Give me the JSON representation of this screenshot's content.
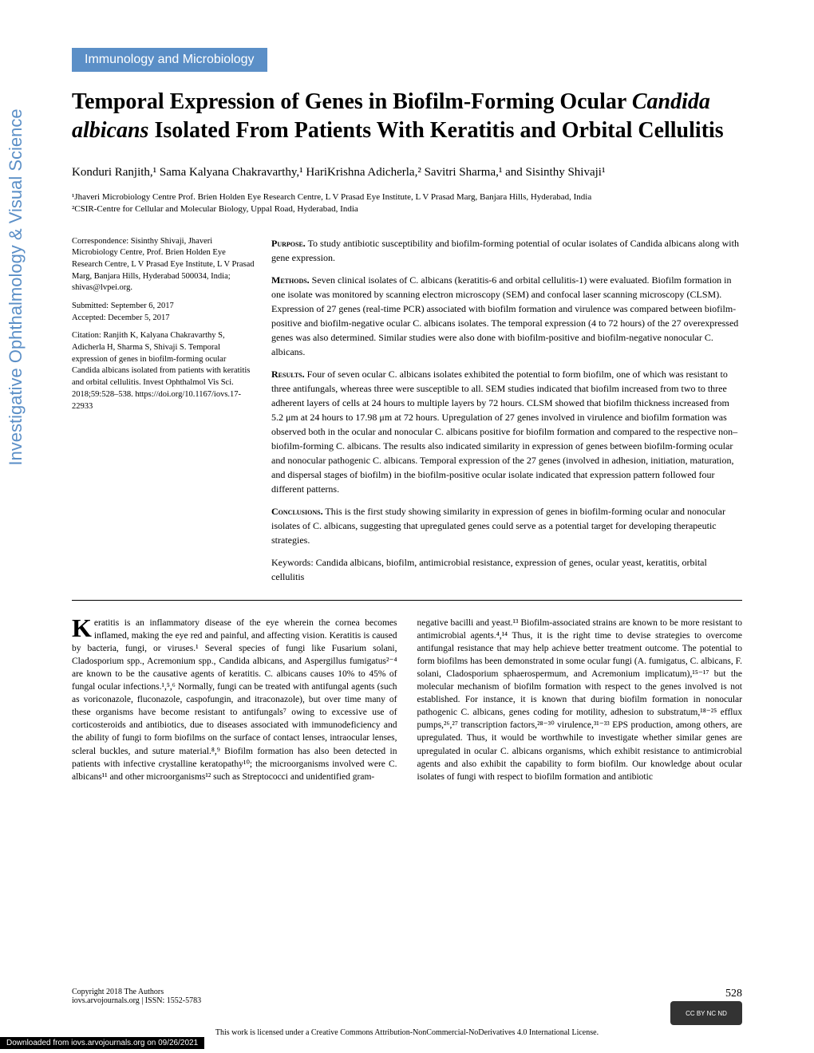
{
  "journal_name": "Investigative Ophthalmology & Visual Science",
  "section_header": "Immunology and Microbiology",
  "title_part1": "Temporal Expression of Genes in Biofilm-Forming Ocular ",
  "title_italic": "Candida albicans",
  "title_part2": " Isolated From Patients With Keratitis and Orbital Cellulitis",
  "authors": "Konduri Ranjith,¹ Sama Kalyana Chakravarthy,¹ HariKrishna Adicherla,² Savitri Sharma,¹ and Sisinthy Shivaji¹",
  "affiliations": {
    "aff1": "¹Jhaveri Microbiology Centre Prof. Brien Holden Eye Research Centre, L V Prasad Eye Institute, L V Prasad Marg, Banjara Hills, Hyderabad, India",
    "aff2": "²CSIR-Centre for Cellular and Molecular Biology, Uppal Road, Hyderabad, India"
  },
  "correspondence": {
    "label": "Correspondence: Sisinthy Shivaji, Jhaveri Microbiology Centre, Prof. Brien Holden Eye Research Centre, L V Prasad Eye Institute, L V Prasad Marg, Banjara Hills, Hyderabad 500034, India;",
    "email": "shivas@lvpei.org."
  },
  "dates": {
    "submitted": "Submitted: September 6, 2017",
    "accepted": "Accepted: December 5, 2017"
  },
  "citation": "Citation: Ranjith K, Kalyana Chakravarthy S, Adicherla H, Sharma S, Shivaji S. Temporal expression of genes in biofilm-forming ocular Candida albicans isolated from patients with keratitis and orbital cellulitis. Invest Ophthalmol Vis Sci. 2018;59:528–538. https://doi.org/10.1167/iovs.17-22933",
  "abstract": {
    "purpose": {
      "label": "Purpose.",
      "text": " To study antibiotic susceptibility and biofilm-forming potential of ocular isolates of Candida albicans along with gene expression."
    },
    "methods": {
      "label": "Methods.",
      "text": " Seven clinical isolates of C. albicans (keratitis-6 and orbital cellulitis-1) were evaluated. Biofilm formation in one isolate was monitored by scanning electron microscopy (SEM) and confocal laser scanning microscopy (CLSM). Expression of 27 genes (real-time PCR) associated with biofilm formation and virulence was compared between biofilm-positive and biofilm-negative ocular C. albicans isolates. The temporal expression (4 to 72 hours) of the 27 overexpressed genes was also determined. Similar studies were also done with biofilm-positive and biofilm-negative nonocular C. albicans."
    },
    "results": {
      "label": "Results.",
      "text": " Four of seven ocular C. albicans isolates exhibited the potential to form biofilm, one of which was resistant to three antifungals, whereas three were susceptible to all. SEM studies indicated that biofilm increased from two to three adherent layers of cells at 24 hours to multiple layers by 72 hours. CLSM showed that biofilm thickness increased from 5.2 μm at 24 hours to 17.98 μm at 72 hours. Upregulation of 27 genes involved in virulence and biofilm formation was observed both in the ocular and nonocular C. albicans positive for biofilm formation and compared to the respective non–biofilm-forming C. albicans. The results also indicated similarity in expression of genes between biofilm-forming ocular and nonocular pathogenic C. albicans. Temporal expression of the 27 genes (involved in adhesion, initiation, maturation, and dispersal stages of biofilm) in the biofilm-positive ocular isolate indicated that expression pattern followed four different patterns."
    },
    "conclusions": {
      "label": "Conclusions.",
      "text": " This is the first study showing similarity in expression of genes in biofilm-forming ocular and nonocular isolates of C. albicans, suggesting that upregulated genes could serve as a potential target for developing therapeutic strategies."
    },
    "keywords": "Keywords: Candida albicans, biofilm, antimicrobial resistance, expression of genes, ocular yeast, keratitis, orbital cellulitis"
  },
  "body": {
    "col1": "eratitis is an inflammatory disease of the eye wherein the cornea becomes inflamed, making the eye red and painful, and affecting vision. Keratitis is caused by bacteria, fungi, or viruses.¹ Several species of fungi like Fusarium solani, Cladosporium spp., Acremonium spp., Candida albicans, and Aspergillus fumigatus²⁻⁴ are known to be the causative agents of keratitis. C. albicans causes 10% to 45% of fungal ocular infections.¹,⁵,⁶ Normally, fungi can be treated with antifungal agents (such as voriconazole, fluconazole, caspofungin, and itraconazole), but over time many of these organisms have become resistant to antifungals⁷ owing to excessive use of corticosteroids and antibiotics, due to diseases associated with immunodeficiency and the ability of fungi to form biofilms on the surface of contact lenses, intraocular lenses, scleral buckles, and suture material.⁸,⁹ Biofilm formation has also been detected in patients with infective crystalline keratopathy¹⁰; the microorganisms involved were C. albicans¹¹ and other microorganisms¹² such as Streptococci and unidentified gram-",
    "col2": "negative bacilli and yeast.¹³ Biofilm-associated strains are known to be more resistant to antimicrobial agents.⁴,¹⁴ Thus, it is the right time to devise strategies to overcome antifungal resistance that may help achieve better treatment outcome.\n\nThe potential to form biofilms has been demonstrated in some ocular fungi (A. fumigatus, C. albicans, F. solani, Cladosporium sphaerospermum, and Acremonium implicatum),¹⁵⁻¹⁷ but the molecular mechanism of biofilm formation with respect to the genes involved is not established. For instance, it is known that during biofilm formation in nonocular pathogenic C. albicans, genes coding for motility, adhesion to substratum,¹⁸⁻²⁵ efflux pumps,²⁶,²⁷ transcription factors,²⁸⁻³⁰ virulence,³¹⁻³³ EPS production, among others, are upregulated. Thus, it would be worthwhile to investigate whether similar genes are upregulated in ocular C. albicans organisms, which exhibit resistance to antimicrobial agents and also exhibit the capability to form biofilm. Our knowledge about ocular isolates of fungi with respect to biofilm formation and antibiotic"
  },
  "footer": {
    "copyright": "Copyright 2018 The Authors",
    "journal_info": "iovs.arvojournals.org | ISSN: 1552-5783",
    "page": "528"
  },
  "license": "This work is licensed under a Creative Commons Attribution-NonCommercial-NoDerivatives 4.0 International License.",
  "cc_text": "CC BY NC ND",
  "download": "Downloaded from iovs.arvojournals.org on 09/26/2021",
  "colors": {
    "header_blue": "#5b8fc7",
    "text": "#000000",
    "background": "#ffffff"
  }
}
